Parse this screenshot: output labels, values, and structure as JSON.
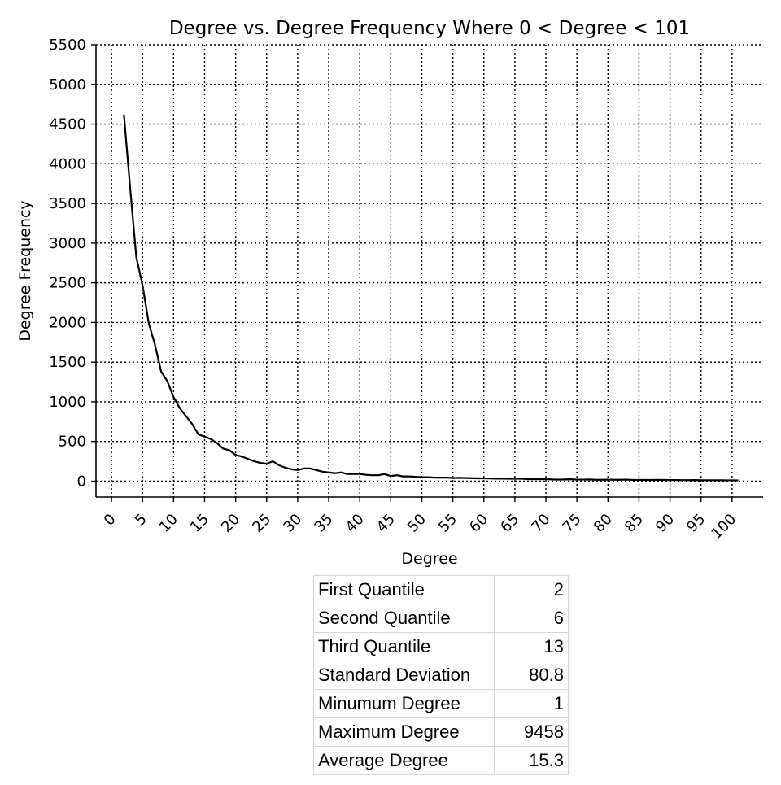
{
  "chart_data": {
    "type": "line",
    "title": "Degree vs. Degree Frequency Where 0 < Degree < 101",
    "xlabel": "Degree",
    "ylabel": "Degree Frequency",
    "xlim": [
      -2.5,
      105
    ],
    "ylim": [
      -200,
      5500
    ],
    "xticks": [
      0,
      5,
      10,
      15,
      20,
      25,
      30,
      35,
      40,
      45,
      50,
      55,
      60,
      65,
      70,
      75,
      80,
      85,
      90,
      95,
      100
    ],
    "yticks": [
      0,
      500,
      1000,
      1500,
      2000,
      2500,
      3000,
      3500,
      4000,
      4500,
      5000,
      5500
    ],
    "grid": true,
    "line_color": "#000000",
    "series": [
      {
        "x": [
          2,
          3,
          4,
          5,
          6,
          7,
          8,
          9,
          10,
          11,
          12,
          13,
          14,
          15,
          16,
          17,
          18,
          19,
          20,
          21,
          22,
          23,
          24,
          25,
          26,
          27,
          28,
          29,
          30,
          31,
          32,
          33,
          34,
          35,
          36,
          37,
          38,
          39,
          40,
          41,
          42,
          43,
          44,
          45,
          46,
          47,
          48,
          49,
          50,
          51,
          52,
          53,
          54,
          55,
          56,
          57,
          58,
          59,
          60,
          61,
          62,
          63,
          64,
          65,
          66,
          67,
          68,
          69,
          70,
          71,
          72,
          73,
          74,
          75,
          76,
          77,
          78,
          79,
          80,
          81,
          82,
          83,
          84,
          85,
          86,
          87,
          88,
          89,
          90,
          91,
          92,
          93,
          94,
          95,
          96,
          97,
          98,
          99,
          100,
          101
        ],
        "values": [
          4620,
          3700,
          2820,
          2470,
          1990,
          1720,
          1380,
          1260,
          1060,
          920,
          820,
          720,
          590,
          560,
          530,
          480,
          410,
          390,
          330,
          310,
          280,
          250,
          230,
          220,
          250,
          200,
          170,
          150,
          140,
          160,
          160,
          140,
          120,
          110,
          100,
          110,
          90,
          90,
          90,
          80,
          75,
          75,
          90,
          65,
          75,
          60,
          60,
          55,
          50,
          50,
          45,
          45,
          45,
          40,
          42,
          40,
          38,
          36,
          36,
          34,
          32,
          32,
          30,
          30,
          32,
          25,
          25,
          25,
          27,
          22,
          20,
          22,
          24,
          20,
          20,
          22,
          18,
          18,
          20,
          18,
          18,
          20,
          16,
          16,
          15,
          15,
          17,
          15,
          14,
          14,
          13,
          13,
          14,
          12,
          12,
          12,
          12,
          11,
          11,
          10
        ]
      }
    ]
  },
  "stats": [
    {
      "label": "First Quantile",
      "value": "2"
    },
    {
      "label": "Second Quantile",
      "value": "6"
    },
    {
      "label": "Third Quantile",
      "value": "13"
    },
    {
      "label": "Standard Deviation",
      "value": "80.8"
    },
    {
      "label": "Minumum Degree",
      "value": "1"
    },
    {
      "label": "Maximum Degree",
      "value": "9458"
    },
    {
      "label": "Average Degree",
      "value": "15.3"
    }
  ]
}
